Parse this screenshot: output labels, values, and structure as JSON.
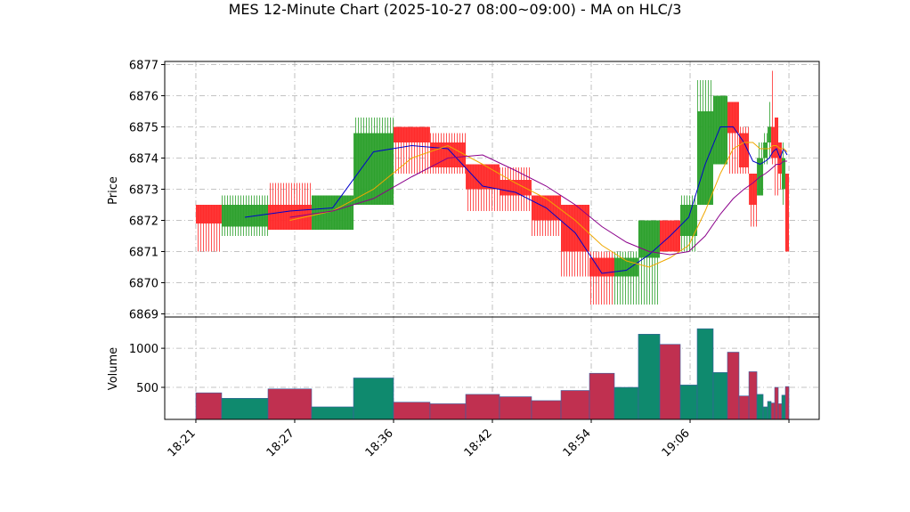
{
  "chart_data": {
    "type": "candlestick",
    "title": "MES 12-Minute Chart (2025-10-27 08:00~09:00) - MA on HLC/3",
    "ylabel": "Price",
    "volume_label": "Volume",
    "up_color": "#2ca02c",
    "down_color": "#ff2a2a",
    "volume_up_color": "#0f8a6e",
    "volume_down_color": "#c03050",
    "grid": true,
    "xlim": [
      -0.315,
      6.306
    ],
    "xticks": [
      {
        "value": 0,
        "label": "18:21"
      },
      {
        "value": 1,
        "label": "18:27"
      },
      {
        "value": 2,
        "label": "18:36"
      },
      {
        "value": 3,
        "label": "18:42"
      },
      {
        "value": 4,
        "label": "18:54"
      },
      {
        "value": 5,
        "label": "19:06"
      },
      {
        "value": 6,
        "label": null
      }
    ],
    "ylim": [
      6868.9,
      6877.1
    ],
    "yticks": [
      6869,
      6870,
      6871,
      6872,
      6873,
      6874,
      6875,
      6876,
      6877
    ],
    "volume_ylim": [
      90,
      1400
    ],
    "volume_yticks": [
      500,
      1000
    ],
    "x": [
      0,
      0.261,
      0.73,
      1.171,
      1.595,
      2.0,
      2.369,
      2.73,
      3.072,
      3.396,
      3.694,
      3.982,
      4.234,
      4.477,
      4.694,
      4.901,
      5.072,
      5.234,
      5.378,
      5.495,
      5.595,
      5.676,
      5.739,
      5.784,
      5.82,
      5.856,
      5.892,
      5.928,
      5.964
    ],
    "open": [
      6872.5,
      6871.8,
      6872.5,
      6871.7,
      6872.5,
      6875.0,
      6874.5,
      6873.8,
      6873.3,
      6872.8,
      6872.5,
      6870.8,
      6870.2,
      6870.8,
      6872.0,
      6871.5,
      6872.5,
      6873.8,
      6875.8,
      6874.8,
      6873.5,
      6872.8,
      6874.0,
      6874.5,
      6875.0,
      6875.3,
      6874.5,
      6873.0,
      6873.5
    ],
    "high": [
      6872.5,
      6872.8,
      6873.2,
      6872.8,
      6875.3,
      6875.0,
      6874.8,
      6873.8,
      6873.7,
      6872.8,
      6872.5,
      6871.0,
      6871.0,
      6872.0,
      6872.0,
      6872.8,
      6876.5,
      6876.0,
      6875.8,
      6875.0,
      6873.5,
      6874.5,
      6874.8,
      6875.8,
      6876.8,
      6875.3,
      6874.5,
      6874.5,
      6873.5
    ],
    "low": [
      6871.0,
      6871.5,
      6871.7,
      6871.7,
      6872.5,
      6873.5,
      6873.5,
      6872.3,
      6872.3,
      6871.5,
      6870.2,
      6869.3,
      6869.3,
      6869.3,
      6871.0,
      6871.0,
      6872.5,
      6873.8,
      6873.5,
      6873.5,
      6871.8,
      6872.8,
      6873.8,
      6874.0,
      6873.8,
      6872.8,
      6873.0,
      6872.5,
      6871.0
    ],
    "close": [
      6871.9,
      6872.5,
      6871.7,
      6872.8,
      6874.8,
      6874.5,
      6873.7,
      6873.0,
      6872.8,
      6872.0,
      6871.0,
      6870.2,
      6870.8,
      6872.0,
      6871.0,
      6872.5,
      6875.5,
      6876.0,
      6874.8,
      6873.7,
      6872.5,
      6874.0,
      6874.5,
      6875.0,
      6874.0,
      6874.0,
      6873.5,
      6874.0,
      6871.0
    ],
    "volume": [
      430,
      360,
      480,
      250,
      620,
      310,
      290,
      410,
      380,
      330,
      460,
      680,
      500,
      1180,
      1050,
      530,
      1250,
      690,
      950,
      390,
      700,
      410,
      250,
      320,
      300,
      500,
      290,
      400,
      510
    ],
    "series": [
      {
        "color": "#0000cc",
        "values": [
          null,
          6872.1,
          6872.3,
          6872.4,
          6874.2,
          6874.4,
          6874.3,
          6873.1,
          6872.9,
          6872.4,
          6871.6,
          6870.3,
          6870.4,
          6870.9,
          6871.5,
          6872.1,
          6873.8,
          6875.0,
          6875.0,
          6874.5,
          6873.9,
          6873.8,
          6873.9,
          6874.0,
          6874.2,
          6874.3,
          6874.0,
          6874.3,
          6874.1
        ]
      },
      {
        "color": "#f0a800",
        "values": [
          null,
          null,
          6872.0,
          6872.3,
          6873.0,
          6874.0,
          6874.4,
          6873.8,
          6873.2,
          6872.7,
          6872.0,
          6871.2,
          6870.7,
          6870.5,
          6870.8,
          6871.2,
          6872.3,
          6873.5,
          6874.3,
          6874.5,
          6874.5,
          6874.3,
          6874.3,
          6874.3,
          6874.4,
          6874.4,
          6874.3,
          6874.3,
          6874.2
        ]
      },
      {
        "color": "#8b008b",
        "values": [
          null,
          null,
          6872.1,
          6872.3,
          6872.7,
          6873.4,
          6874.0,
          6874.1,
          6873.6,
          6873.1,
          6872.5,
          6871.8,
          6871.3,
          6871.0,
          6870.9,
          6871.0,
          6871.5,
          6872.2,
          6872.7,
          6873.0,
          6873.2,
          6873.4,
          6873.5,
          6873.6,
          6873.7,
          6873.8,
          6873.8,
          6873.9,
          6873.9
        ]
      }
    ]
  }
}
